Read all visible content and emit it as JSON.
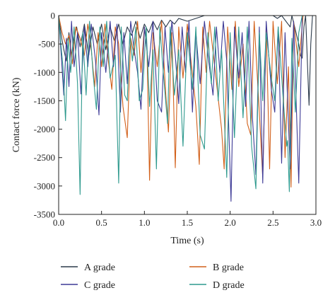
{
  "chart_data": {
    "type": "line",
    "title": "",
    "xlabel": "Time (s)",
    "ylabel": "Contact force (kN)",
    "xlim": [
      0.0,
      3.0
    ],
    "ylim": [
      -3500,
      0
    ],
    "x_ticks": [
      0.0,
      0.5,
      1.0,
      1.5,
      2.0,
      2.5,
      3.0
    ],
    "x_tick_labels": [
      "0.0",
      "0.5",
      "1.0",
      "1.5",
      "2.0",
      "2.5",
      "3.0"
    ],
    "y_ticks": [
      0,
      -500,
      -1000,
      -1500,
      -2000,
      -2500,
      -3000,
      -3500
    ],
    "y_tick_labels": [
      "0",
      "-500",
      "-1000",
      "-1500",
      "-2000",
      "-2500",
      "-3000",
      "-3500"
    ],
    "grid": false,
    "legend_placement": "bottom",
    "series": [
      {
        "name": "A grade",
        "color": "#2b3a4a",
        "points": [
          [
            0.0,
            0
          ],
          [
            0.03,
            -350
          ],
          [
            0.06,
            -600
          ],
          [
            0.09,
            -800
          ],
          [
            0.12,
            -300
          ],
          [
            0.15,
            -700
          ],
          [
            0.18,
            -400
          ],
          [
            0.21,
            -200
          ],
          [
            0.25,
            -550
          ],
          [
            0.3,
            -150
          ],
          [
            0.35,
            -700
          ],
          [
            0.4,
            -200
          ],
          [
            0.45,
            -500
          ],
          [
            0.5,
            -150
          ],
          [
            0.55,
            -600
          ],
          [
            0.6,
            -200
          ],
          [
            0.65,
            -450
          ],
          [
            0.7,
            -150
          ],
          [
            0.75,
            -500
          ],
          [
            0.8,
            -200
          ],
          [
            0.85,
            -350
          ],
          [
            0.9,
            -100
          ],
          [
            0.95,
            -400
          ],
          [
            1.0,
            -150
          ],
          [
            1.05,
            -300
          ],
          [
            1.1,
            -100
          ],
          [
            1.15,
            -250
          ],
          [
            1.2,
            -80
          ],
          [
            1.25,
            -200
          ],
          [
            1.3,
            -80
          ],
          [
            1.35,
            -150
          ],
          [
            1.4,
            -50
          ],
          [
            1.5,
            -100
          ],
          [
            1.6,
            -50
          ],
          [
            1.7,
            0
          ],
          [
            2.5,
            0
          ],
          [
            2.55,
            -50
          ],
          [
            2.6,
            0
          ],
          [
            2.7,
            -200
          ],
          [
            2.72,
            0
          ],
          [
            2.8,
            -500
          ],
          [
            2.82,
            -700
          ],
          [
            2.84,
            -750
          ],
          [
            2.86,
            -200
          ],
          [
            2.88,
            0
          ],
          [
            2.92,
            -1580
          ],
          [
            2.94,
            -500
          ],
          [
            2.96,
            0
          ],
          [
            3.0,
            0
          ]
        ]
      },
      {
        "name": "B grade",
        "color": "#d2601a",
        "points": [
          [
            0.0,
            0
          ],
          [
            0.04,
            -300
          ],
          [
            0.08,
            -500
          ],
          [
            0.12,
            -350
          ],
          [
            0.16,
            -850
          ],
          [
            0.2,
            -200
          ],
          [
            0.25,
            -400
          ],
          [
            0.3,
            -700
          ],
          [
            0.34,
            -150
          ],
          [
            0.38,
            -600
          ],
          [
            0.42,
            -1250
          ],
          [
            0.46,
            -300
          ],
          [
            0.5,
            -900
          ],
          [
            0.54,
            -150
          ],
          [
            0.58,
            -800
          ],
          [
            0.62,
            -1300
          ],
          [
            0.66,
            -200
          ],
          [
            0.7,
            -500
          ],
          [
            0.75,
            -1600
          ],
          [
            0.8,
            -2150
          ],
          [
            0.84,
            -400
          ],
          [
            0.88,
            -700
          ],
          [
            0.92,
            -100
          ],
          [
            0.96,
            -1000
          ],
          [
            1.0,
            -200
          ],
          [
            1.03,
            -600
          ],
          [
            1.06,
            -2900
          ],
          [
            1.1,
            -300
          ],
          [
            1.15,
            -900
          ],
          [
            1.2,
            -100
          ],
          [
            1.25,
            -1400
          ],
          [
            1.28,
            -2050
          ],
          [
            1.32,
            -300
          ],
          [
            1.36,
            -2680
          ],
          [
            1.4,
            -200
          ],
          [
            1.45,
            -1100
          ],
          [
            1.5,
            -150
          ],
          [
            1.55,
            -900
          ],
          [
            1.6,
            -1600
          ],
          [
            1.64,
            -2620
          ],
          [
            1.68,
            -200
          ],
          [
            1.72,
            -1000
          ],
          [
            1.76,
            -100
          ],
          [
            1.82,
            -900
          ],
          [
            1.9,
            -2000
          ],
          [
            1.93,
            -2700
          ],
          [
            1.97,
            -200
          ],
          [
            2.02,
            -1300
          ],
          [
            2.06,
            -100
          ],
          [
            2.1,
            -1250
          ],
          [
            2.15,
            -500
          ],
          [
            2.2,
            -1900
          ],
          [
            2.24,
            -2100
          ],
          [
            2.28,
            -100
          ],
          [
            2.34,
            -1700
          ],
          [
            2.38,
            -2850
          ],
          [
            2.42,
            -200
          ],
          [
            2.46,
            -2700
          ],
          [
            2.5,
            -100
          ],
          [
            2.55,
            -1200
          ],
          [
            2.6,
            -100
          ],
          [
            2.64,
            -2500
          ],
          [
            2.68,
            -900
          ],
          [
            2.71,
            -3020
          ],
          [
            2.74,
            -100
          ],
          [
            2.8,
            -900
          ],
          [
            2.85,
            0
          ],
          [
            3.0,
            0
          ]
        ]
      },
      {
        "name": "C grade",
        "color": "#3d3a96",
        "points": [
          [
            0.0,
            0
          ],
          [
            0.03,
            -700
          ],
          [
            0.06,
            -1400
          ],
          [
            0.09,
            -400
          ],
          [
            0.12,
            -1250
          ],
          [
            0.15,
            -100
          ],
          [
            0.18,
            -900
          ],
          [
            0.22,
            -300
          ],
          [
            0.26,
            -1380
          ],
          [
            0.3,
            -200
          ],
          [
            0.34,
            -900
          ],
          [
            0.38,
            -150
          ],
          [
            0.43,
            -800
          ],
          [
            0.47,
            -1750
          ],
          [
            0.5,
            -300
          ],
          [
            0.55,
            -1000
          ],
          [
            0.6,
            -100
          ],
          [
            0.64,
            -900
          ],
          [
            0.68,
            -150
          ],
          [
            0.72,
            -1700
          ],
          [
            0.76,
            -300
          ],
          [
            0.8,
            -1200
          ],
          [
            0.84,
            -100
          ],
          [
            0.88,
            -600
          ],
          [
            0.92,
            -1000
          ],
          [
            0.96,
            -1650
          ],
          [
            1.0,
            -200
          ],
          [
            1.05,
            -900
          ],
          [
            1.1,
            -100
          ],
          [
            1.15,
            -1500
          ],
          [
            1.2,
            -1700
          ],
          [
            1.24,
            -200
          ],
          [
            1.28,
            -1000
          ],
          [
            1.32,
            -100
          ],
          [
            1.36,
            -700
          ],
          [
            1.4,
            -1550
          ],
          [
            1.44,
            -200
          ],
          [
            1.48,
            -1000
          ],
          [
            1.52,
            -100
          ],
          [
            1.56,
            -1700
          ],
          [
            1.6,
            -300
          ],
          [
            1.65,
            -1200
          ],
          [
            1.7,
            -100
          ],
          [
            1.75,
            -800
          ],
          [
            1.8,
            -1400
          ],
          [
            1.84,
            -200
          ],
          [
            1.88,
            -1000
          ],
          [
            1.92,
            -100
          ],
          [
            1.96,
            -800
          ],
          [
            2.01,
            -3270
          ],
          [
            2.05,
            -200
          ],
          [
            2.1,
            -1100
          ],
          [
            2.14,
            -300
          ],
          [
            2.18,
            -1600
          ],
          [
            2.22,
            -100
          ],
          [
            2.26,
            -1800
          ],
          [
            2.3,
            -2800
          ],
          [
            2.34,
            -200
          ],
          [
            2.38,
            -2950
          ],
          [
            2.42,
            -100
          ],
          [
            2.48,
            -1300
          ],
          [
            2.52,
            -1700
          ],
          [
            2.56,
            -200
          ],
          [
            2.6,
            -2600
          ],
          [
            2.64,
            -300
          ],
          [
            2.7,
            -2700
          ],
          [
            2.74,
            -100
          ],
          [
            2.8,
            -2950
          ],
          [
            2.84,
            0
          ],
          [
            3.0,
            0
          ]
        ]
      },
      {
        "name": "D grade",
        "color": "#2f9a8e",
        "points": [
          [
            0.0,
            0
          ],
          [
            0.02,
            -400
          ],
          [
            0.05,
            -900
          ],
          [
            0.08,
            -1850
          ],
          [
            0.11,
            -400
          ],
          [
            0.14,
            -1000
          ],
          [
            0.18,
            -200
          ],
          [
            0.22,
            -1200
          ],
          [
            0.25,
            -3150
          ],
          [
            0.28,
            -300
          ],
          [
            0.32,
            -1400
          ],
          [
            0.36,
            -100
          ],
          [
            0.4,
            -1000
          ],
          [
            0.44,
            -1650
          ],
          [
            0.48,
            -200
          ],
          [
            0.52,
            -900
          ],
          [
            0.56,
            -100
          ],
          [
            0.6,
            -1100
          ],
          [
            0.66,
            -700
          ],
          [
            0.7,
            -2950
          ],
          [
            0.73,
            -200
          ],
          [
            0.77,
            -1400
          ],
          [
            0.8,
            -1500
          ],
          [
            0.83,
            -300
          ],
          [
            0.86,
            -800
          ],
          [
            0.9,
            -200
          ],
          [
            0.94,
            -1500
          ],
          [
            0.98,
            -1300
          ],
          [
            1.02,
            -200
          ],
          [
            1.06,
            -1600
          ],
          [
            1.1,
            -600
          ],
          [
            1.14,
            -2700
          ],
          [
            1.18,
            -200
          ],
          [
            1.22,
            -1000
          ],
          [
            1.27,
            -1900
          ],
          [
            1.3,
            -200
          ],
          [
            1.35,
            -1400
          ],
          [
            1.4,
            -600
          ],
          [
            1.45,
            -2300
          ],
          [
            1.5,
            -300
          ],
          [
            1.56,
            -1300
          ],
          [
            1.6,
            -200
          ],
          [
            1.65,
            -2100
          ],
          [
            1.7,
            -2350
          ],
          [
            1.74,
            -300
          ],
          [
            1.78,
            -1200
          ],
          [
            1.82,
            -200
          ],
          [
            1.86,
            -1500
          ],
          [
            1.9,
            -600
          ],
          [
            1.96,
            -2850
          ],
          [
            2.0,
            -300
          ],
          [
            2.05,
            -2150
          ],
          [
            2.1,
            -200
          ],
          [
            2.15,
            -1800
          ],
          [
            2.2,
            -200
          ],
          [
            2.25,
            -2300
          ],
          [
            2.3,
            -3050
          ],
          [
            2.34,
            -300
          ],
          [
            2.38,
            -1500
          ],
          [
            2.42,
            -300
          ],
          [
            2.48,
            -1100
          ],
          [
            2.52,
            -1500
          ],
          [
            2.56,
            -200
          ],
          [
            2.62,
            -1500
          ],
          [
            2.66,
            -2300
          ],
          [
            2.67,
            -2200
          ],
          [
            2.69,
            -3100
          ],
          [
            2.72,
            -400
          ],
          [
            2.76,
            -1700
          ],
          [
            2.8,
            -300
          ],
          [
            2.84,
            0
          ],
          [
            3.0,
            0
          ]
        ]
      }
    ]
  }
}
